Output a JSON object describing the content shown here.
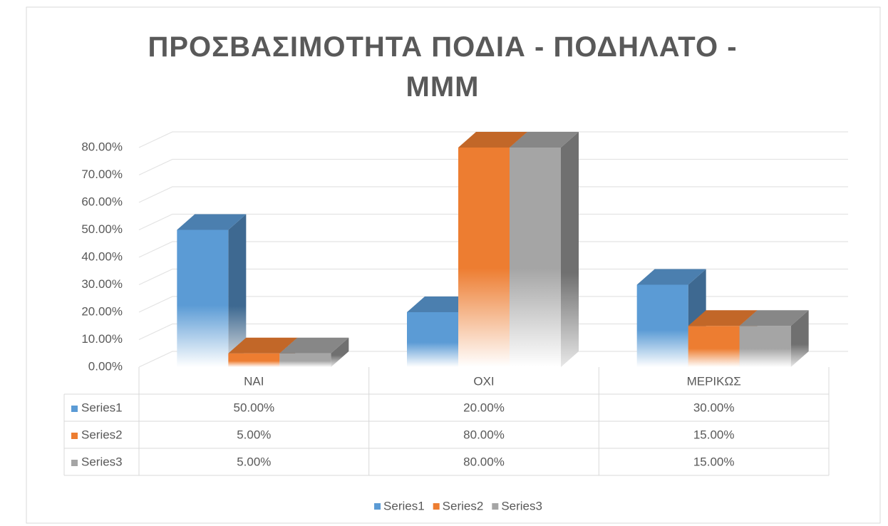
{
  "chart_data": {
    "type": "bar3d",
    "title": "ΠΡΟΣΒΑΣΙΜΟΤΗΤΑ ΠΟΔΙΑ - ΠΟΔΗΛΑΤΟ - ΜΜΜ",
    "categories": [
      "ΝΑΙ",
      "ΟΧΙ",
      "ΜΕΡΙΚΩΣ"
    ],
    "series": [
      {
        "name": "Series1",
        "color": "#5b9bd5",
        "values": [
          50,
          20,
          30
        ],
        "value_labels": [
          "50.00%",
          "20.00%",
          "30.00%"
        ]
      },
      {
        "name": "Series2",
        "color": "#ed7d31",
        "values": [
          5,
          80,
          15
        ],
        "value_labels": [
          "5.00%",
          "80.00%",
          "15.00%"
        ]
      },
      {
        "name": "Series3",
        "color": "#a5a5a5",
        "values": [
          5,
          80,
          15
        ],
        "value_labels": [
          "5.00%",
          "80.00%",
          "15.00%"
        ]
      }
    ],
    "ylim": [
      0,
      80
    ],
    "yticks": [
      {
        "value": 0,
        "label": "0.00%"
      },
      {
        "value": 10,
        "label": "10.00%"
      },
      {
        "value": 20,
        "label": "20.00%"
      },
      {
        "value": 30,
        "label": "30.00%"
      },
      {
        "value": 40,
        "label": "40.00%"
      },
      {
        "value": 50,
        "label": "50.00%"
      },
      {
        "value": 60,
        "label": "60.00%"
      },
      {
        "value": 70,
        "label": "70.00%"
      },
      {
        "value": 80,
        "label": "80.00%"
      }
    ],
    "grid": true,
    "legend": "bottom",
    "data_table": true
  }
}
